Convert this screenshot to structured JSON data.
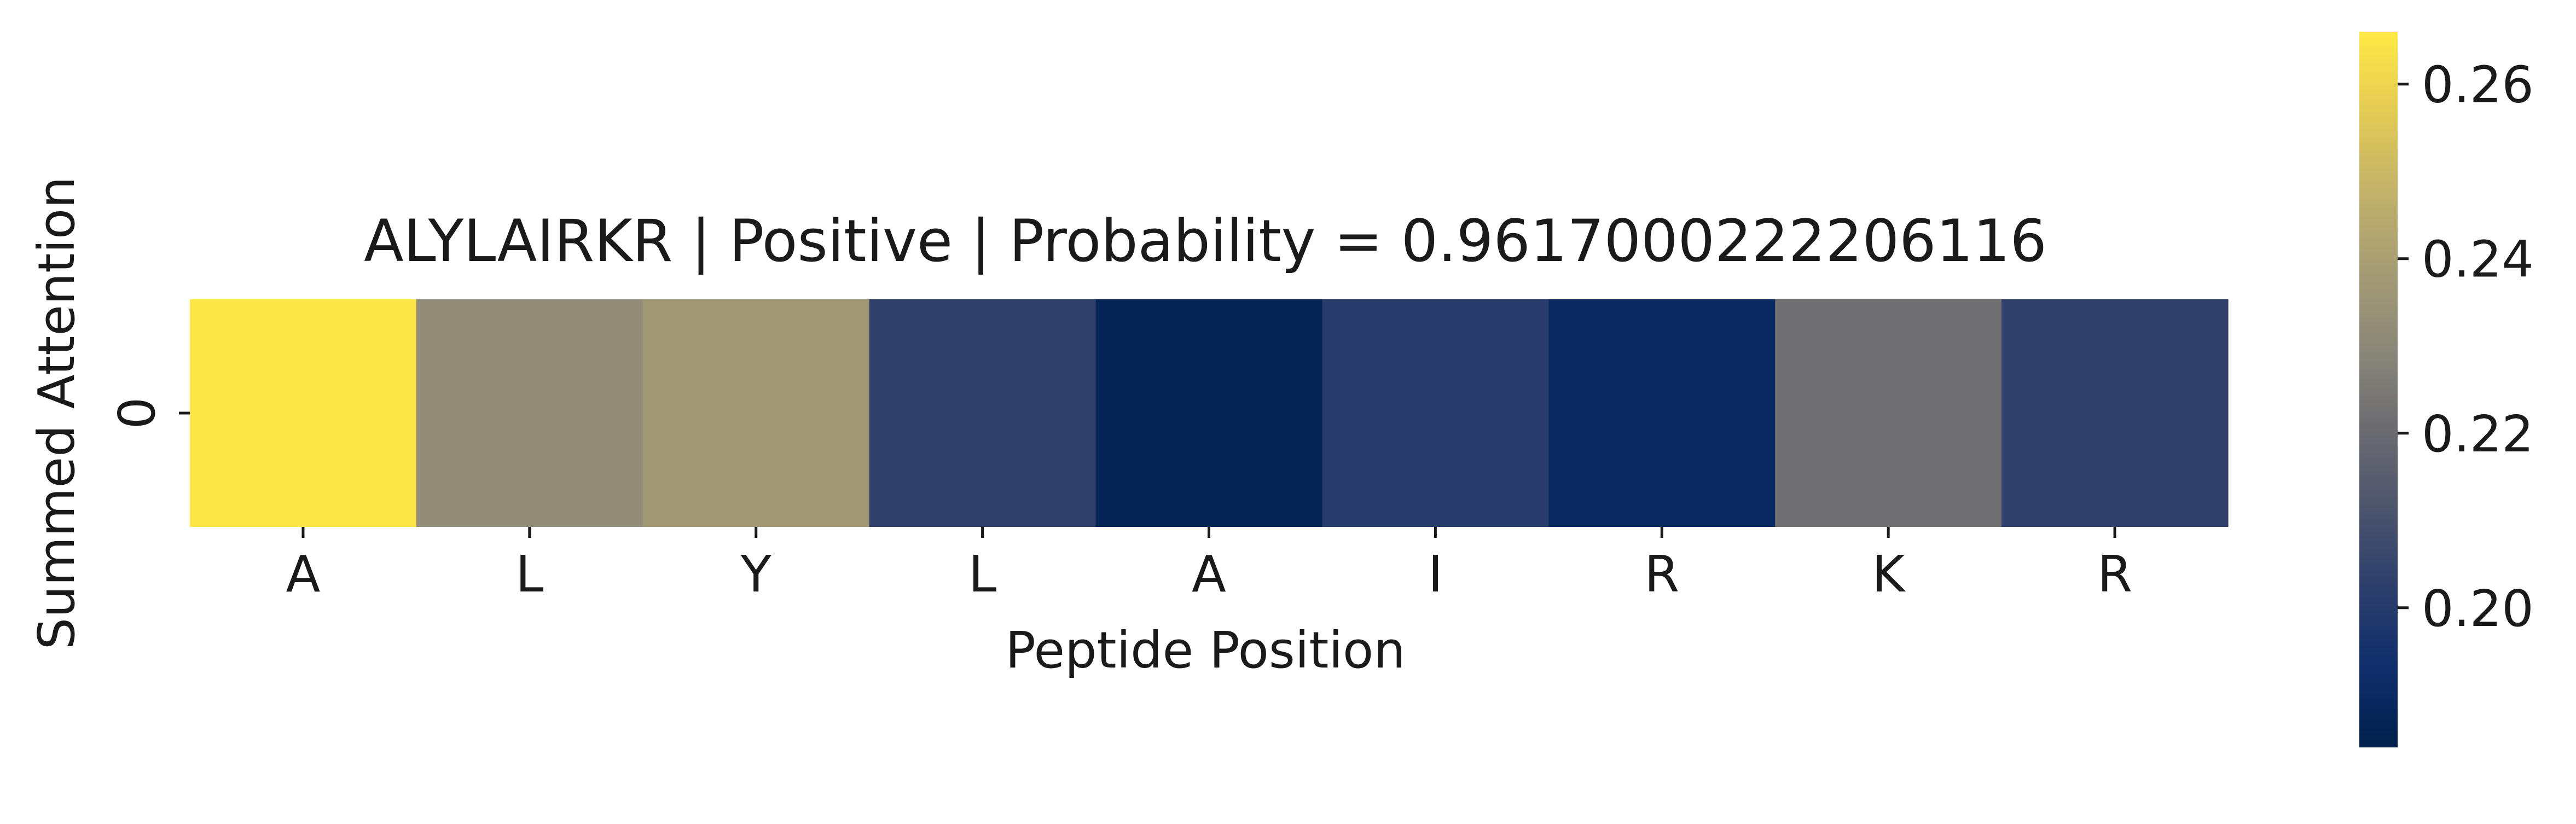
{
  "chart_data": {
    "type": "heatmap",
    "title": "ALYLAIRKR | Positive | Probability = 0.9617000222206116",
    "xlabel": "Peptide Position",
    "ylabel": "Summed Attention",
    "x_tick_labels": [
      "A",
      "L",
      "Y",
      "L",
      "A",
      "I",
      "R",
      "K",
      "R"
    ],
    "y_tick_labels": [
      "0"
    ],
    "rows": [
      [
        0.265,
        0.232,
        0.237,
        0.203,
        0.187,
        0.201,
        0.19,
        0.222,
        0.203
      ]
    ],
    "colormap": "cividis",
    "color_range": [
      0.184,
      0.266
    ],
    "colorbar_ticks": [
      {
        "value": 0.2,
        "label": "0.20"
      },
      {
        "value": 0.22,
        "label": "0.22"
      },
      {
        "value": 0.24,
        "label": "0.24"
      },
      {
        "value": 0.26,
        "label": "0.26"
      }
    ],
    "colorbar_stops": [
      "#00204d",
      "#0f2e6b",
      "#2c3e6b",
      "#4c546c",
      "#6b6b70",
      "#8a8779",
      "#a59c74",
      "#c2b26a",
      "#e3cb55",
      "#ffe945"
    ]
  }
}
